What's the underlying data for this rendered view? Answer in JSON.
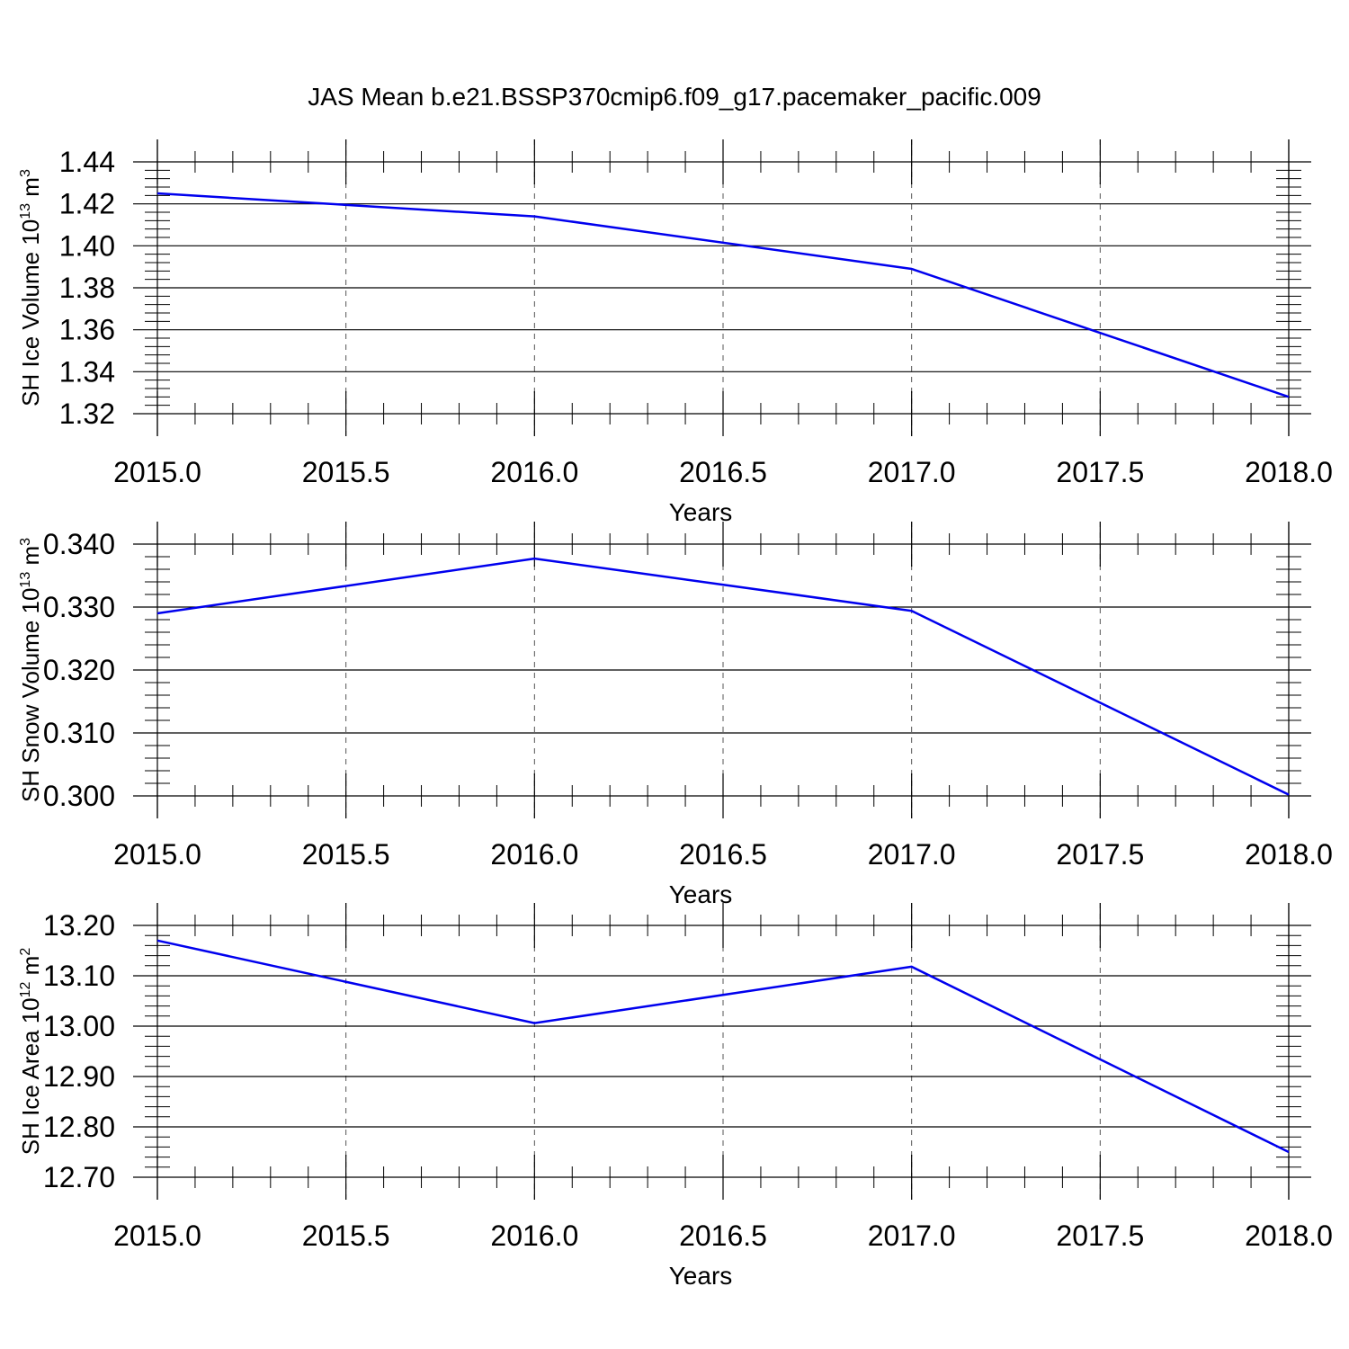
{
  "title": "JAS Mean b.e21.BSSP370cmip6.f09_g17.pacemaker_pacific.009",
  "colors": {
    "line": "#0000ee",
    "axis": "#000000",
    "grid": "#555555"
  },
  "chart_data": [
    {
      "type": "line",
      "xlabel": "Years",
      "ylabel_main": "SH Ice Volume 10",
      "ylabel_exp": "13",
      "ylabel_unit": " m",
      "ylabel_unit_exp": "3",
      "x": [
        2015,
        2016,
        2017,
        2018
      ],
      "y": [
        1.425,
        1.414,
        1.389,
        1.328
      ],
      "xlim": [
        2015,
        2018
      ],
      "ylim": [
        1.32,
        1.44
      ],
      "xticks": [
        2015.0,
        2015.5,
        2016.0,
        2016.5,
        2017.0,
        2017.5,
        2018.0
      ],
      "xtick_labels": [
        "2015.0",
        "2015.5",
        "2016.0",
        "2016.5",
        "2017.0",
        "2017.5",
        "2018.0"
      ],
      "yticks": [
        1.32,
        1.34,
        1.36,
        1.38,
        1.4,
        1.42,
        1.44
      ],
      "ytick_labels": [
        "1.32",
        "1.34",
        "1.36",
        "1.38",
        "1.40",
        "1.42",
        "1.44"
      ],
      "y_minor_step": 0.004,
      "grid": "vertical dashed"
    },
    {
      "type": "line",
      "xlabel": "Years",
      "ylabel_main": "SH Snow Volume 10",
      "ylabel_exp": "13",
      "ylabel_unit": " m",
      "ylabel_unit_exp": "3",
      "x": [
        2015,
        2016,
        2017,
        2018
      ],
      "y": [
        0.329,
        0.3377,
        0.3294,
        0.3002
      ],
      "xlim": [
        2015,
        2018
      ],
      "ylim": [
        0.3,
        0.34
      ],
      "xticks": [
        2015.0,
        2015.5,
        2016.0,
        2016.5,
        2017.0,
        2017.5,
        2018.0
      ],
      "xtick_labels": [
        "2015.0",
        "2015.5",
        "2016.0",
        "2016.5",
        "2017.0",
        "2017.5",
        "2018.0"
      ],
      "yticks": [
        0.3,
        0.31,
        0.32,
        0.33,
        0.34
      ],
      "ytick_labels": [
        "0.300",
        "0.310",
        "0.320",
        "0.330",
        "0.340"
      ],
      "y_minor_step": 0.002,
      "grid": "vertical dashed"
    },
    {
      "type": "line",
      "xlabel": "Years",
      "ylabel_main": "SH Ice Area 10",
      "ylabel_exp": "12",
      "ylabel_unit": " m",
      "ylabel_unit_exp": "2",
      "x": [
        2015,
        2016,
        2017,
        2018
      ],
      "y": [
        13.17,
        13.006,
        13.118,
        12.75
      ],
      "xlim": [
        2015,
        2018
      ],
      "ylim": [
        12.7,
        13.2
      ],
      "xticks": [
        2015.0,
        2015.5,
        2016.0,
        2016.5,
        2017.0,
        2017.5,
        2018.0
      ],
      "xtick_labels": [
        "2015.0",
        "2015.5",
        "2016.0",
        "2016.5",
        "2017.0",
        "2017.5",
        "2018.0"
      ],
      "yticks": [
        12.7,
        12.8,
        12.9,
        13.0,
        13.1,
        13.2
      ],
      "ytick_labels": [
        "12.70",
        "12.80",
        "12.90",
        "13.00",
        "13.10",
        "13.20"
      ],
      "y_minor_step": 0.02,
      "grid": "vertical dashed"
    }
  ]
}
